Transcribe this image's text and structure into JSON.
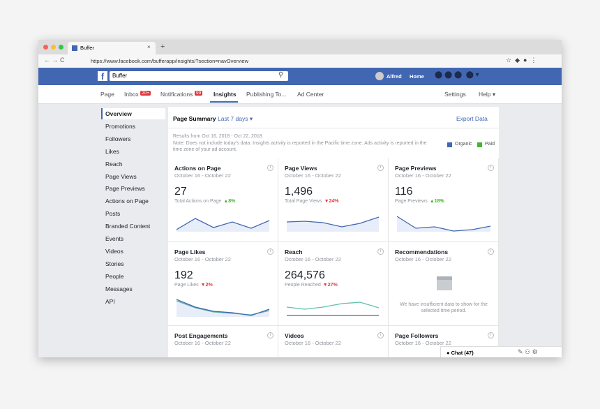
{
  "browser": {
    "tab_title": "Buffer",
    "url": "https://www.facebook.com/bufferapp/insights/?section=navOverview"
  },
  "topbar": {
    "search": "Buffer",
    "user": "Alfred",
    "home": "Home"
  },
  "nav": {
    "items": [
      "Page",
      "Inbox",
      "Notifications",
      "Insights",
      "Publishing To...",
      "Ad Center"
    ],
    "badges": {
      "inbox": "20+",
      "notifications": "99"
    },
    "settings": "Settings",
    "help": "Help ▾"
  },
  "sidebar": [
    "Overview",
    "Promotions",
    "Followers",
    "Likes",
    "Reach",
    "Page Views",
    "Page Previews",
    "Actions on Page",
    "Posts",
    "Branded Content",
    "Events",
    "Videos",
    "Stories",
    "People",
    "Messages",
    "API"
  ],
  "summary": {
    "title": "Page Summary",
    "period": "Last 7 days ▾",
    "export": "Export Data",
    "results": "Results from Oct 16, 2018 - Oct 22, 2018",
    "note": "Note: Does not include today's data. Insights activity is reported in the Pacific time zone. Ads activity is reported in the time zone of your ad account.",
    "legend": [
      {
        "name": "Organic",
        "color": "#4267b2"
      },
      {
        "name": "Paid",
        "color": "#42b72a"
      }
    ]
  },
  "cards": [
    {
      "title": "Actions on Page",
      "date": "October 16 - October 22",
      "value": "27",
      "caption": "Total Actions on Page",
      "change": "▲8%",
      "color": "#42b72a"
    },
    {
      "title": "Page Views",
      "date": "October 16 - October 22",
      "value": "1,496",
      "caption": "Total Page Views",
      "change": "▼24%",
      "color": "#e0393e"
    },
    {
      "title": "Page Previews",
      "date": "October 16 - October 22",
      "value": "116",
      "caption": "Page Previews",
      "change": "▲18%",
      "color": "#42b72a"
    },
    {
      "title": "Page Likes",
      "date": "October 16 - October 22",
      "value": "192",
      "caption": "Page Likes",
      "change": "▼2%",
      "color": "#e0393e"
    },
    {
      "title": "Reach",
      "date": "October 16 - October 22",
      "value": "264,576",
      "caption": "People Reached",
      "change": "▼27%",
      "color": "#e0393e"
    },
    {
      "title": "Recommendations",
      "date": "October 16 - October 22",
      "message": "We have insufficient data to show for the selected time period."
    },
    {
      "title": "Post Engagements",
      "date": "October 16 - October 22"
    },
    {
      "title": "Videos",
      "date": "October 16 - October 22"
    },
    {
      "title": "Page Followers",
      "date": "October 16 - October 22"
    }
  ],
  "chat": "Chat (47)"
}
